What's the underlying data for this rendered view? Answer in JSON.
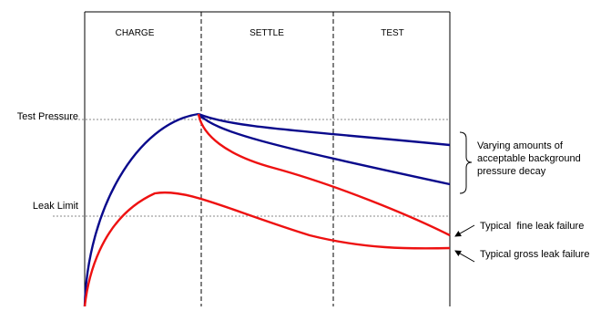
{
  "phases": [
    "CHARGE",
    "SETTLE",
    "TEST"
  ],
  "y_labels": {
    "test_pressure": "Test Pressure",
    "leak_limit": "Leak Limit"
  },
  "annotations": {
    "background_decay": [
      "Varying amounts of",
      "acceptable background",
      "pressure decay"
    ],
    "fine_leak": "Typical  fine leak failure",
    "gross_leak": "Typical gross leak failure"
  },
  "colors": {
    "acceptable_curve": "#0a0a8c",
    "failure_curve": "#ee1111",
    "reference_line": "#888888",
    "frame": "#000000"
  },
  "curves": [
    {
      "name": "acceptable-low-decay",
      "color_key": "acceptable_curve"
    },
    {
      "name": "acceptable-high-decay",
      "color_key": "acceptable_curve"
    },
    {
      "name": "fine-leak-failure",
      "color_key": "failure_curve"
    },
    {
      "name": "gross-leak-failure",
      "color_key": "failure_curve"
    }
  ]
}
